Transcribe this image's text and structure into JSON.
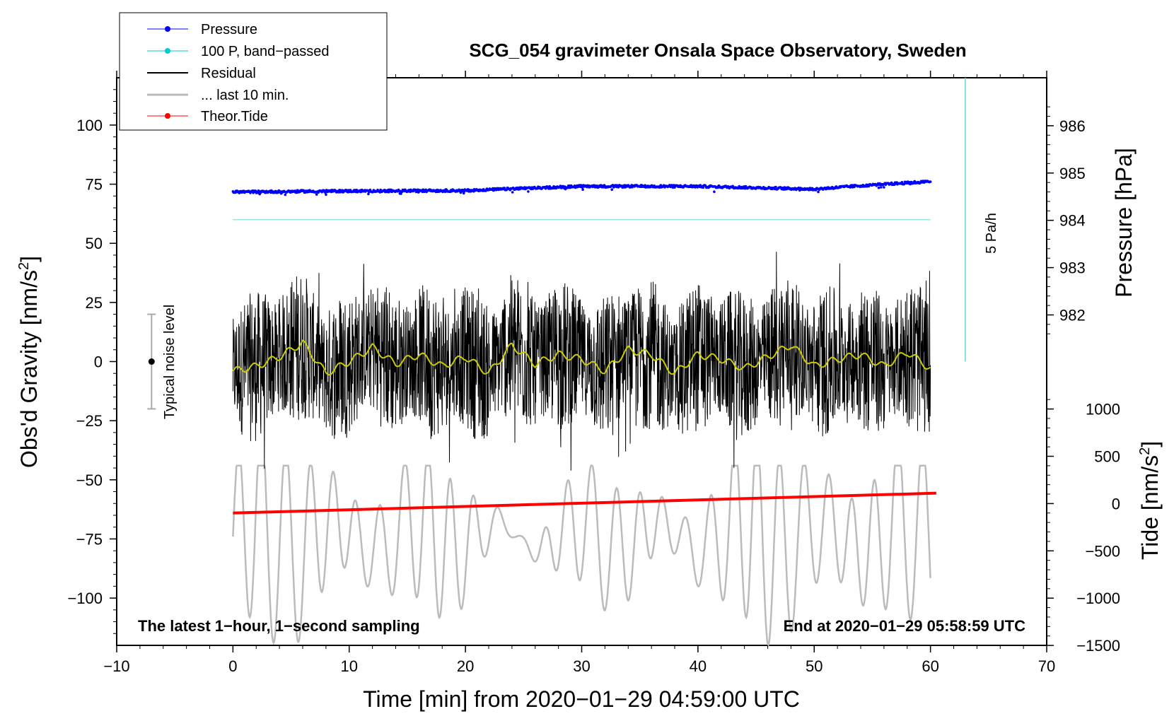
{
  "chart_data": {
    "type": "line",
    "title": "SCG_054 gravimeter Onsala Space Observatory, Sweden",
    "xlabel": "Time [min] from 2020−01−29 04:59:00 UTC",
    "ylabel_left_main": "Obs'd Gravity [nm/s",
    "ylabel_left_sup": "2",
    "ylabel_left_end": "]",
    "ylabel_right_top": "Pressure [hPa]",
    "ylabel_right_bottom_main": "Tide [nm/s",
    "ylabel_right_bottom_sup": "2",
    "ylabel_right_bottom_end": "]",
    "xlim": [
      -10,
      70
    ],
    "ylim_gravity": [
      -120,
      120
    ],
    "x_ticks": [
      "−10",
      "0",
      "10",
      "20",
      "30",
      "40",
      "50",
      "60",
      "70"
    ],
    "x_tick_values": [
      -10,
      0,
      10,
      20,
      30,
      40,
      50,
      60,
      70
    ],
    "y_ticks": [
      "−100",
      "−75",
      "−50",
      "−25",
      "0",
      "25",
      "50",
      "75",
      "100"
    ],
    "y_tick_values": [
      -100,
      -75,
      -50,
      -25,
      0,
      25,
      50,
      75,
      100
    ],
    "pressure_ticks": [
      "982",
      "983",
      "984",
      "985",
      "986"
    ],
    "pressure_tick_values": [
      982,
      983,
      984,
      985,
      986
    ],
    "tide_ticks": [
      "−1500",
      "−1000",
      "−500",
      "0",
      "500",
      "1000"
    ],
    "tide_tick_values": [
      -1500,
      -1000,
      -500,
      0,
      500,
      1000
    ],
    "legend": [
      {
        "label": "Pressure",
        "color": "#0000ff",
        "marker": "dot"
      },
      {
        "label": "100 P, band−passed",
        "color": "#00cccc",
        "marker": "dot"
      },
      {
        "label": "Residual",
        "color": "#000000",
        "marker": "line"
      },
      {
        "label": "... last 10 min.",
        "color": "#bbbbbb",
        "marker": "line"
      },
      {
        "label": "Theor.Tide",
        "color": "#ff0000",
        "marker": "dot"
      }
    ],
    "series": [
      {
        "name": "Pressure",
        "unit": "hPa",
        "x": [
          0,
          10,
          20,
          30,
          40,
          50,
          55,
          60
        ],
        "values": [
          984.6,
          984.62,
          984.63,
          984.72,
          984.72,
          984.66,
          984.75,
          984.82
        ]
      },
      {
        "name": "100 P, band-passed",
        "constant_gravity_equivalent": 60,
        "x": [
          0,
          60
        ]
      },
      {
        "name": "Residual",
        "amplitude_range": [
          -50,
          53
        ],
        "x_range": [
          0,
          60
        ]
      },
      {
        "name": "Residual smoothed",
        "color": "#cccc00",
        "x": [
          0,
          2,
          4,
          6,
          8,
          10,
          12,
          14,
          16,
          18,
          20,
          22,
          24,
          26,
          28,
          30,
          32,
          34,
          36,
          38,
          40,
          42,
          44,
          46,
          48,
          50,
          52,
          54,
          56,
          58,
          60
        ],
        "values": [
          -4,
          -2,
          2,
          8,
          -5,
          0,
          6,
          -1,
          3,
          -2,
          2,
          -5,
          7,
          -1,
          3,
          1,
          -4,
          5,
          3,
          -5,
          3,
          1,
          -3,
          2,
          7,
          -2,
          1,
          3,
          -2,
          4,
          -3
        ]
      },
      {
        "name": "... last 10 min.",
        "color": "#bbbbbb",
        "amplitude_range": [
          -120,
          -40
        ],
        "x_range": [
          0,
          60
        ]
      },
      {
        "name": "Theor.Tide",
        "unit": "nm/s2",
        "x": [
          0,
          60.5
        ],
        "values": [
          -100,
          110
        ]
      },
      {
        "name": "Pressure rate scale bar",
        "x": 63,
        "gravity_range": [
          0,
          120
        ],
        "label": "5 Pa/h"
      },
      {
        "name": "Typical noise level",
        "x": -7,
        "center": 0,
        "range": [
          -20,
          20
        ]
      }
    ],
    "annotations": {
      "bottom_left": "The latest 1−hour, 1−second sampling",
      "bottom_right": "End at 2020−01−29 05:58:59 UTC",
      "pressure_rate": "5 Pa/h",
      "noise": "Typical noise level"
    }
  }
}
